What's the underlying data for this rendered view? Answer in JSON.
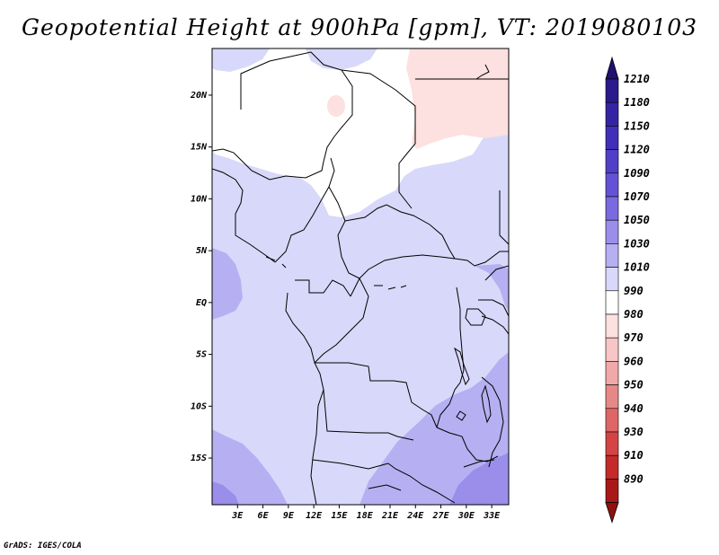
{
  "title": "Geopotential Height at 900hPa [gpm], VT: 2019080103",
  "credit": "GrADS: IGES/COLA",
  "map": {
    "region": "Central Africa",
    "lon_range": [
      0,
      35
    ],
    "lat_range": [
      -19.5,
      24.5
    ],
    "lon_ticks": [
      {
        "value": 3,
        "label": "3E"
      },
      {
        "value": 6,
        "label": "6E"
      },
      {
        "value": 9,
        "label": "9E"
      },
      {
        "value": 12,
        "label": "12E"
      },
      {
        "value": 15,
        "label": "15E"
      },
      {
        "value": 18,
        "label": "18E"
      },
      {
        "value": 21,
        "label": "21E"
      },
      {
        "value": 24,
        "label": "24E"
      },
      {
        "value": 27,
        "label": "27E"
      },
      {
        "value": 30,
        "label": "30E"
      },
      {
        "value": 33,
        "label": "33E"
      }
    ],
    "lat_ticks": [
      {
        "value": 20,
        "label": "20N"
      },
      {
        "value": 15,
        "label": "15N"
      },
      {
        "value": 10,
        "label": "10N"
      },
      {
        "value": 5,
        "label": "5N"
      },
      {
        "value": 0,
        "label": "EQ"
      },
      {
        "value": -5,
        "label": "5S"
      },
      {
        "value": -10,
        "label": "10S"
      },
      {
        "value": -15,
        "label": "15S"
      }
    ]
  },
  "colorbar": {
    "levels": [
      {
        "label": "1210",
        "color": "#2a1a8c"
      },
      {
        "label": "1180",
        "color": "#3424a4"
      },
      {
        "label": "1150",
        "color": "#4030b8"
      },
      {
        "label": "1120",
        "color": "#5040c8"
      },
      {
        "label": "1090",
        "color": "#6452d6"
      },
      {
        "label": "1070",
        "color": "#7a6ae0"
      },
      {
        "label": "1050",
        "color": "#9a8eea"
      },
      {
        "label": "1030",
        "color": "#b6b0f2"
      },
      {
        "label": "1010",
        "color": "#d8d8fa"
      },
      {
        "label": "990",
        "color": "#ffffff"
      },
      {
        "label": "980",
        "color": "#fde0e0"
      },
      {
        "label": "970",
        "color": "#f8c6c6"
      },
      {
        "label": "960",
        "color": "#f0a8a8"
      },
      {
        "label": "950",
        "color": "#e68888"
      },
      {
        "label": "940",
        "color": "#de6666"
      },
      {
        "label": "930",
        "color": "#d44444"
      },
      {
        "label": "910",
        "color": "#c42a2a"
      },
      {
        "label": "890",
        "color": "#a81818"
      }
    ],
    "top_arrow_color": "#201070",
    "bottom_arrow_color": "#901010"
  },
  "colors": {
    "background_low": "#d8d8fa",
    "field_white": "#ffffff",
    "field_pink": "#fde0e0",
    "field_mid": "#b6b0f2",
    "field_high": "#9a8eea"
  }
}
